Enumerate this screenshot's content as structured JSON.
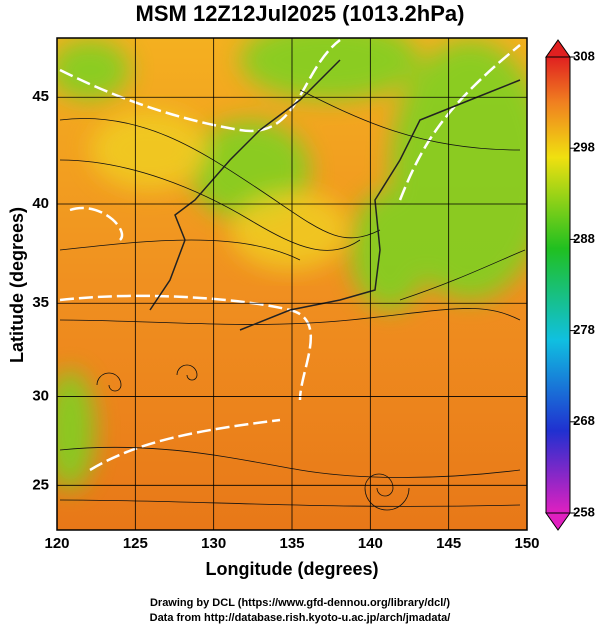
{
  "chart_data": {
    "type": "map",
    "title": "MSM 12Z12Jul2025 (1013.2hPa)",
    "x_label": "Longitude (degrees)",
    "y_label": "Latitude  (degrees)",
    "projection": "mercator",
    "xlim": [
      120,
      150
    ],
    "xticks": [
      120,
      125,
      130,
      135,
      140,
      145,
      150
    ],
    "ylim": [
      22.4,
      47.6
    ],
    "yticks": [
      25,
      30,
      35,
      40,
      45
    ],
    "grid": true,
    "colorbar": {
      "clim": [
        258,
        308
      ],
      "ticks": [
        258,
        268,
        278,
        288,
        298,
        308
      ]
    }
  },
  "footer": [
    "Drawing by DCL (https://www.gfd-dennou.org/library/dcl/)",
    "Data from http://database.rish.kyoto-u.ac.jp/arch/jmadata/"
  ]
}
